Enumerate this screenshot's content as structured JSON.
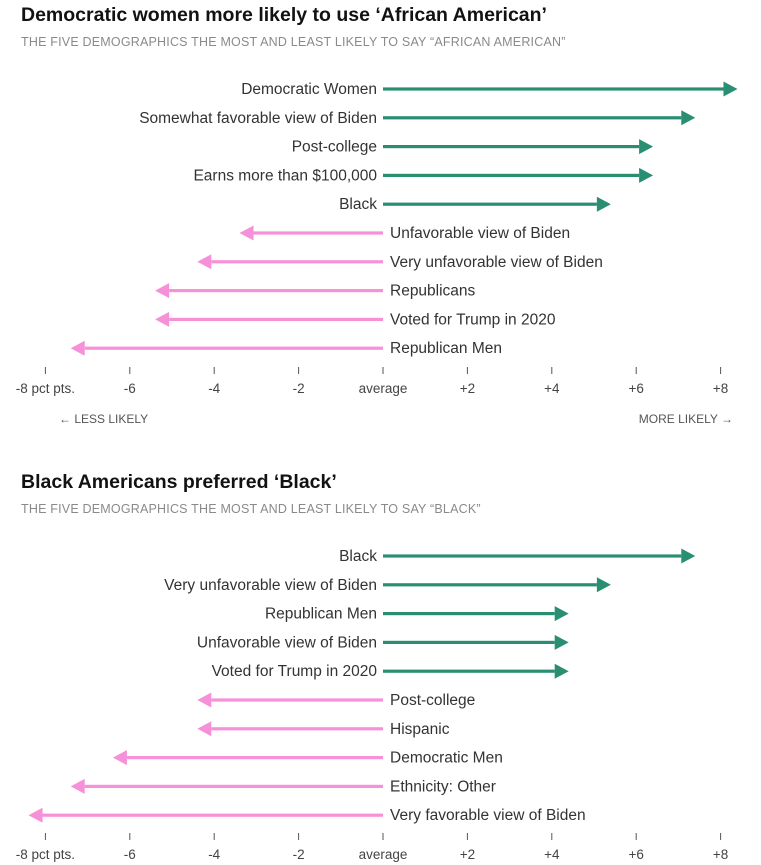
{
  "colors": {
    "positive": "#2a8f72",
    "negative": "#f590d9",
    "axis": "#666666",
    "label": "#333333"
  },
  "charts": [
    {
      "title": "Democratic women more likely to use ‘African American’",
      "subtitle": "THE FIVE DEMOGRAPHICS THE MOST AND LEAST LIKELY TO SAY “AFRICAN AMERICAN”",
      "less_label": "← LESS LIKELY",
      "more_label": "MORE LIKELY →"
    },
    {
      "title": "Black Americans preferred ‘Black’",
      "subtitle": "THE FIVE DEMOGRAPHICS THE MOST AND LEAST LIKELY TO SAY “BLACK”"
    }
  ],
  "chart_data": [
    {
      "type": "bar",
      "orientation": "horizontal",
      "title": "Democratic women more likely to use ‘African American’",
      "xlim": [
        -8,
        8
      ],
      "xticks": [
        -8,
        -6,
        -4,
        -2,
        0,
        2,
        4,
        6,
        8
      ],
      "xtick_labels": [
        "-8 pct pts.",
        "-6",
        "-4",
        "-2",
        "average",
        "+2",
        "+4",
        "+6",
        "+8"
      ],
      "categories": [
        "Democratic Women",
        "Somewhat favorable view of Biden",
        "Post-college",
        "Earns more than $100,000",
        "Black",
        "Unfavorable view of Biden",
        "Very unfavorable view of Biden",
        "Republicans",
        "Voted for Trump in 2020",
        "Republican Men"
      ],
      "values": [
        8.4,
        7.4,
        6.4,
        6.4,
        5.4,
        -3.4,
        -4.4,
        -5.4,
        -5.4,
        -7.4
      ]
    },
    {
      "type": "bar",
      "orientation": "horizontal",
      "title": "Black Americans preferred ‘Black’",
      "xlim": [
        -8,
        8
      ],
      "xticks": [
        -8,
        -6,
        -4,
        -2,
        0,
        2,
        4,
        6,
        8
      ],
      "xtick_labels": [
        "-8 pct pts.",
        "-6",
        "-4",
        "-2",
        "average",
        "+2",
        "+4",
        "+6",
        "+8"
      ],
      "categories": [
        "Black",
        "Very unfavorable view of Biden",
        "Republican Men",
        "Unfavorable view of Biden",
        "Voted for Trump in 2020",
        "Post-college",
        "Hispanic",
        "Democratic Men",
        "Ethnicity: Other",
        "Very favorable view of Biden"
      ],
      "values": [
        7.4,
        5.4,
        4.4,
        4.4,
        4.4,
        -4.4,
        -4.4,
        -6.4,
        -7.4,
        -8.4
      ]
    }
  ]
}
